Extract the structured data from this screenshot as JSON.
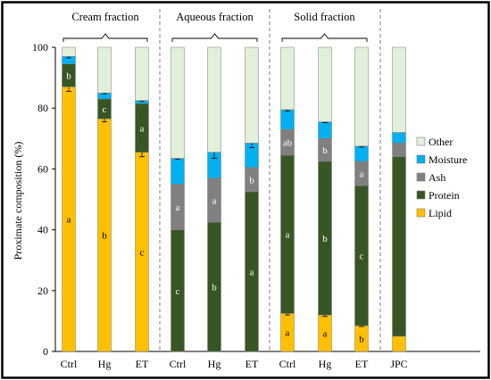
{
  "chart_data": {
    "type": "bar",
    "stacked": true,
    "ylabel": "Proximate composition (%)",
    "ylim": [
      0,
      100
    ],
    "yticks": [
      0,
      20,
      40,
      60,
      80,
      100
    ],
    "grid": false,
    "legend_position": "right",
    "groups": [
      {
        "label": "Cream fraction",
        "categories": [
          "Ctrl",
          "Hg",
          "ET"
        ]
      },
      {
        "label": "Aqueous fraction",
        "categories": [
          "Ctrl",
          "Hg",
          "ET"
        ]
      },
      {
        "label": "Solid fraction",
        "categories": [
          "Ctrl",
          "Hg",
          "ET"
        ]
      },
      {
        "label": "",
        "categories": [
          "JPC"
        ]
      }
    ],
    "categories": [
      "Ctrl",
      "Hg",
      "ET",
      "Ctrl",
      "Hg",
      "ET",
      "Ctrl",
      "Hg",
      "ET",
      "JPC"
    ],
    "series": [
      {
        "name": "Lipid",
        "color": "#FFC000",
        "values": [
          87,
          76.5,
          65.5,
          0,
          0,
          0,
          12.5,
          12,
          8.5,
          5
        ],
        "errors": [
          1.5,
          1,
          1.5,
          0,
          0,
          0,
          0.5,
          0.5,
          0.3,
          0
        ],
        "labels": [
          "a",
          "b",
          "c",
          "",
          "",
          "",
          "a",
          "a",
          "b",
          ""
        ]
      },
      {
        "name": "Protein",
        "color": "#375623",
        "values": [
          7.5,
          6.5,
          16,
          40,
          42.5,
          52.5,
          52,
          50.5,
          46,
          59
        ],
        "errors": [
          0,
          0,
          0,
          0,
          0,
          0,
          0,
          0,
          0,
          0
        ],
        "labels": [
          "b",
          "c",
          "a",
          "c",
          "b",
          "a",
          "a",
          "b",
          "c",
          ""
        ]
      },
      {
        "name": "Ash",
        "color": "#808080",
        "values": [
          0,
          0,
          0,
          15,
          14.5,
          8,
          8.5,
          7.5,
          8,
          4.5
        ],
        "errors": [
          0,
          0,
          0,
          0,
          0,
          0,
          0,
          0,
          0,
          0
        ],
        "labels": [
          "",
          "",
          "",
          "a",
          "a",
          "b",
          "ab",
          "b",
          "a",
          ""
        ]
      },
      {
        "name": "Moisture",
        "color": "#00B0F0",
        "values": [
          2.5,
          2,
          1,
          8.5,
          8.5,
          8,
          6.5,
          5.5,
          5,
          3.5
        ],
        "errors": [
          0.5,
          0.3,
          0.3,
          0.3,
          2,
          1.5,
          0.5,
          0.3,
          0.3,
          0
        ],
        "labels": [
          "",
          "",
          "",
          "",
          "",
          "",
          "",
          "",
          "",
          ""
        ]
      },
      {
        "name": "Other",
        "color": "#E2EFDA",
        "values": [
          3,
          15,
          17.5,
          36.5,
          34.5,
          31.5,
          20.5,
          24.5,
          32.5,
          28
        ],
        "errors": [
          0,
          0,
          0,
          0,
          0,
          0,
          0,
          0,
          0,
          0
        ],
        "labels": [
          "",
          "",
          "",
          "",
          "",
          "",
          "",
          "",
          "",
          ""
        ]
      }
    ]
  }
}
